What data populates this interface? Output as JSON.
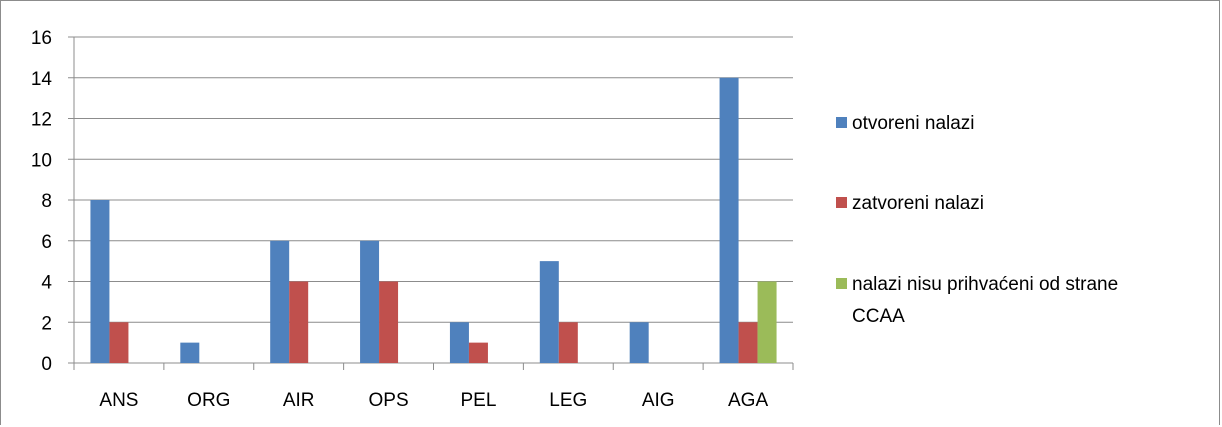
{
  "chart_data": {
    "type": "bar",
    "title": "",
    "xlabel": "",
    "ylabel": "",
    "categories": [
      "ANS",
      "ORG",
      "AIR",
      "OPS",
      "PEL",
      "LEG",
      "AIG",
      "AGA"
    ],
    "ylim": [
      0,
      16
    ],
    "yticks": [
      "0",
      "2",
      "4",
      "6",
      "8",
      "10",
      "12",
      "14",
      "16"
    ],
    "grid": "horizontal",
    "legend_position": "right",
    "series": [
      {
        "name": "otvoreni nalazi",
        "color": "#4F81BD",
        "values": [
          8,
          1,
          6,
          6,
          2,
          5,
          2,
          14
        ]
      },
      {
        "name": "zatvoreni nalazi",
        "color": "#C0504D",
        "values": [
          2,
          0,
          4,
          4,
          1,
          2,
          0,
          2
        ]
      },
      {
        "name": "nalazi nisu prihvaćeni od strane CCAA",
        "name_lines": [
          "nalazi nisu prihvaćeni od strane",
          "CCAA"
        ],
        "color": "#9BBB59",
        "values": [
          0,
          0,
          0,
          0,
          0,
          0,
          0,
          4
        ]
      }
    ]
  }
}
